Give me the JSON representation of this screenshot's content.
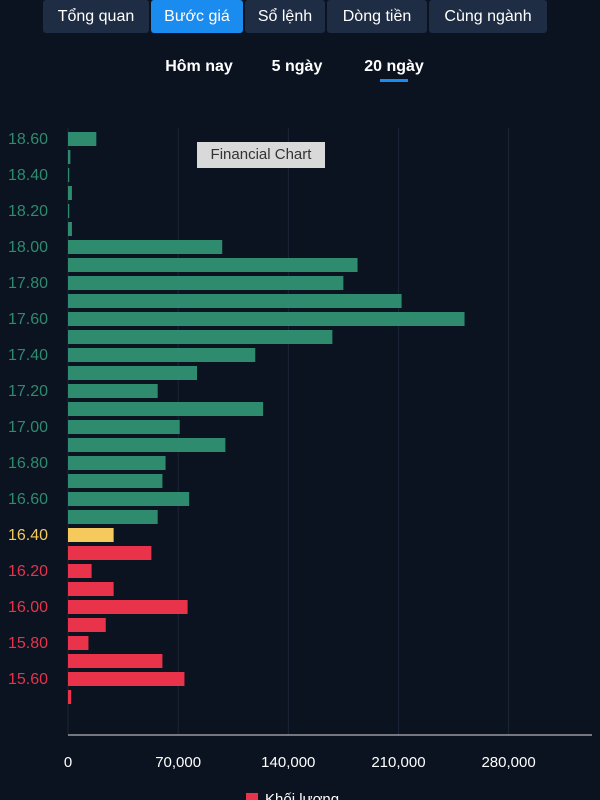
{
  "tabs": [
    "Tổng quan",
    "Bước giá",
    "Sổ lệnh",
    "Dòng tiền",
    "Cùng ngành"
  ],
  "subtabs": [
    "Hôm nay",
    "5 ngày",
    "20 ngày"
  ],
  "chart_data": {
    "type": "hbar",
    "annotation": "Financial Chart",
    "categories": [
      "18.60",
      null,
      "18.40",
      null,
      "18.20",
      null,
      "18.00",
      null,
      "17.80",
      null,
      "17.60",
      null,
      "17.40",
      null,
      "17.20",
      null,
      "17.00",
      null,
      "16.80",
      null,
      "16.60",
      null,
      "16.40",
      null,
      "16.20",
      null,
      "16.00",
      null,
      "15.80",
      null,
      "15.60",
      null
    ],
    "series": [
      {
        "name": "Khối lượng",
        "color": "#e8334a",
        "values": [
          18000,
          1500,
          800,
          2500,
          800,
          2500,
          98000,
          184000,
          175000,
          212000,
          252000,
          168000,
          119000,
          82000,
          57000,
          124000,
          71000,
          100000,
          62000,
          60000,
          77000,
          57000,
          29000,
          53000,
          15000,
          29000,
          76000,
          24000,
          13000,
          60000,
          74000,
          2000
        ],
        "colors": [
          "#2e8b6e",
          "#2e8b6e",
          "#2e8b6e",
          "#2e8b6e",
          "#2e8b6e",
          "#2e8b6e",
          "#2e8b6e",
          "#2e8b6e",
          "#2e8b6e",
          "#2e8b6e",
          "#2e8b6e",
          "#2e8b6e",
          "#2e8b6e",
          "#2e8b6e",
          "#2e8b6e",
          "#2e8b6e",
          "#2e8b6e",
          "#2e8b6e",
          "#2e8b6e",
          "#2e8b6e",
          "#2e8b6e",
          "#2e8b6e",
          "#f5c95b",
          "#e8334a",
          "#e8334a",
          "#e8334a",
          "#e8334a",
          "#e8334a",
          "#e8334a",
          "#e8334a",
          "#e8334a",
          "#e8334a"
        ]
      }
    ],
    "xlim": [
      0,
      333000
    ],
    "xticks": [
      0,
      {
        "value": 70000,
        "label": "70,000"
      },
      {
        "value": 140000,
        "label": "140,000"
      },
      {
        "value": 210000,
        "label": "210,000"
      },
      {
        "value": 280000,
        "label": "280,000"
      }
    ],
    "grid": true
  }
}
